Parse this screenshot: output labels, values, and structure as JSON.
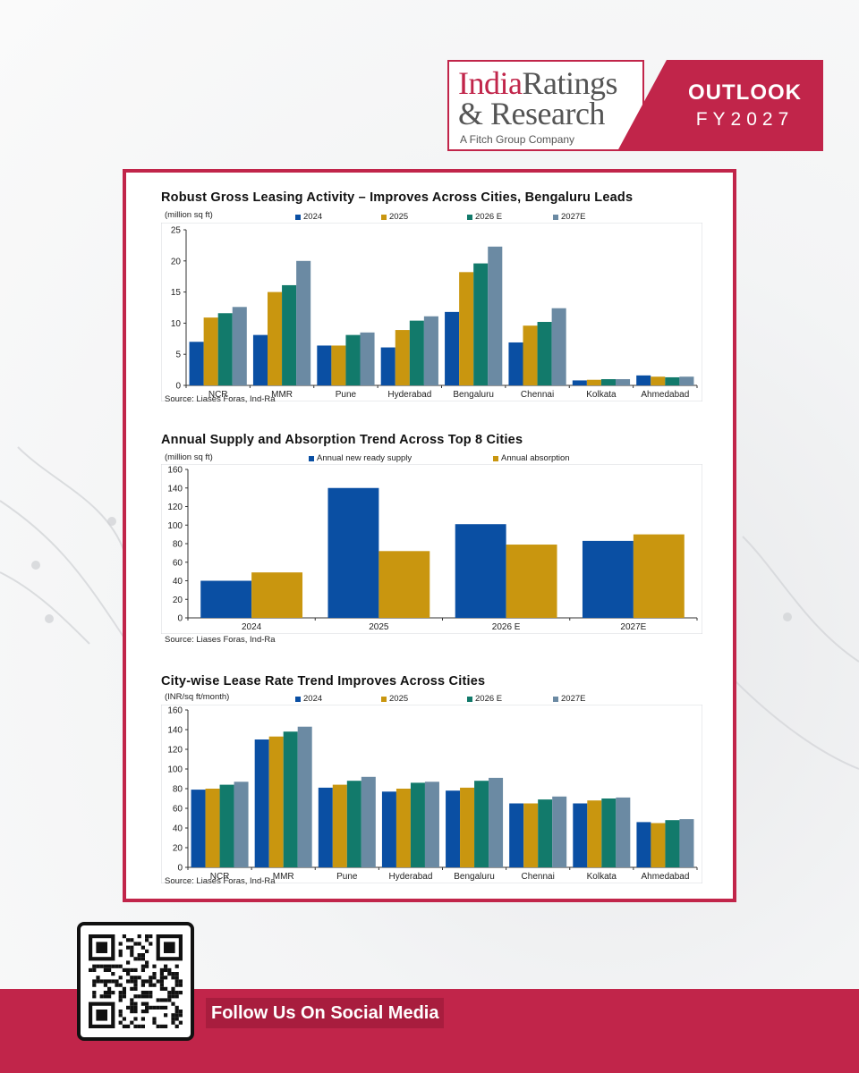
{
  "header": {
    "logo_word1": "India",
    "logo_word2": "Ratings",
    "logo_line2": "& Research",
    "logo_sub": "A Fitch Group Company",
    "outlook_title": "OUTLOOK",
    "outlook_year": "FY2027"
  },
  "colors": {
    "brand": "#c1254a",
    "s2024": "#0a4fa3",
    "s2025": "#c9960f",
    "s2026": "#127a6b",
    "s2027": "#6b8aa3"
  },
  "chart_data": [
    {
      "type": "bar",
      "title": "Robust Gross Leasing Activity – Improves Across Cities, Bengaluru Leads",
      "unit": "(million sq ft)",
      "source": "Source: Liases Foras, Ind-Ra",
      "categories": [
        "NCR",
        "MMR",
        "Pune",
        "Hyderabad",
        "Bengaluru",
        "Chennai",
        "Kolkata",
        "Ahmedabad"
      ],
      "series": [
        {
          "name": "2024",
          "values": [
            7.0,
            8.1,
            6.4,
            6.1,
            11.8,
            6.9,
            0.8,
            1.6
          ]
        },
        {
          "name": "2025",
          "values": [
            10.9,
            15.0,
            6.4,
            8.9,
            18.2,
            9.6,
            0.9,
            1.4
          ]
        },
        {
          "name": "2026 E",
          "values": [
            11.6,
            16.1,
            8.1,
            10.4,
            19.6,
            10.2,
            1.0,
            1.3
          ]
        },
        {
          "name": "2027E",
          "values": [
            12.6,
            20.0,
            8.5,
            11.1,
            22.3,
            12.4,
            1.0,
            1.4
          ]
        }
      ],
      "ylim": [
        0,
        25
      ],
      "yticks": [
        0,
        5,
        10,
        15,
        20,
        25
      ]
    },
    {
      "type": "bar",
      "title": "Annual Supply and Absorption Trend Across Top 8 Cities",
      "unit": "(million sq ft)",
      "source": "Source: Liases Foras, Ind-Ra",
      "categories": [
        "2024",
        "2025",
        "2026 E",
        "2027E"
      ],
      "series": [
        {
          "name": "Annual new ready supply",
          "values": [
            40,
            140,
            101,
            83
          ]
        },
        {
          "name": "Annual absorption",
          "values": [
            49,
            72,
            79,
            90
          ]
        }
      ],
      "ylim": [
        0,
        160
      ],
      "yticks": [
        0,
        20,
        40,
        60,
        80,
        100,
        120,
        140,
        160
      ]
    },
    {
      "type": "bar",
      "title": "City-wise Lease Rate Trend Improves Across Cities",
      "unit": "(INR/sq ft/month)",
      "source": "Source: Liases Foras, Ind-Ra",
      "categories": [
        "NCR",
        "MMR",
        "Pune",
        "Hyderabad",
        "Bengaluru",
        "Chennai",
        "Kolkata",
        "Ahmedabad"
      ],
      "series": [
        {
          "name": "2024",
          "values": [
            79,
            130,
            81,
            77,
            78,
            65,
            65,
            46
          ]
        },
        {
          "name": "2025",
          "values": [
            80,
            133,
            84,
            80,
            81,
            65,
            68,
            45
          ]
        },
        {
          "name": "2026 E",
          "values": [
            84,
            138,
            88,
            86,
            88,
            69,
            70,
            48
          ]
        },
        {
          "name": "2027E",
          "values": [
            87,
            143,
            92,
            87,
            91,
            72,
            71,
            49
          ]
        }
      ],
      "ylim": [
        0,
        160
      ],
      "yticks": [
        0,
        20,
        40,
        60,
        80,
        100,
        120,
        140,
        160
      ]
    }
  ],
  "footer": {
    "follow_label": "Follow Us On Social Media"
  }
}
